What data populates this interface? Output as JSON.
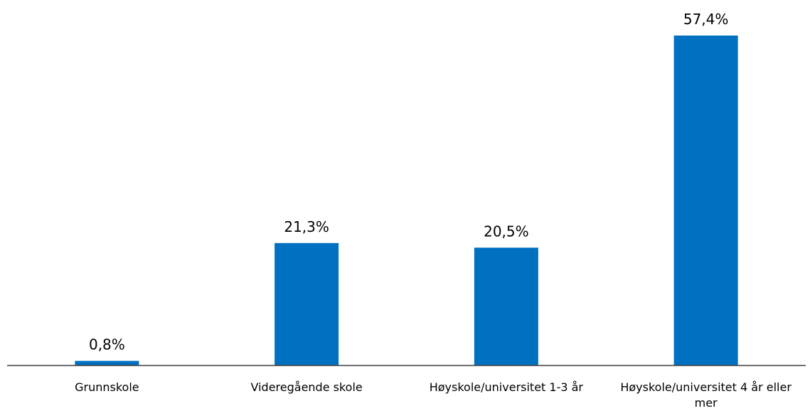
{
  "chart_data": {
    "type": "bar",
    "categories": [
      "Grunnskole",
      "Videregående skole",
      "Høyskole/universitet 1-3 år",
      "Høyskole/universitet 4 år eller mer"
    ],
    "values": [
      0.8,
      21.3,
      20.5,
      57.4
    ],
    "value_labels": [
      "0,8%",
      "21,3%",
      "20,5%",
      "57,4%"
    ],
    "color": "#0070c0"
  }
}
